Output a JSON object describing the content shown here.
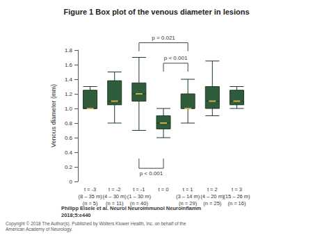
{
  "chart_data": {
    "type": "boxplot",
    "title": "Figure 1 Box plot of the venous diameter in lesions",
    "y_label": "Venous diameter (mm)",
    "categories": [
      "t = -3\n(8 – 35 m)\n(n = 5)",
      "t = -2\n(4 – 30 m)\n(n = 11)",
      "t = -1\n(1 – 30 m)\n(n = 40)",
      "t = 0",
      "t = 1\n(3 – 14 m)\n(n = 29)",
      "t = 2\n(4 – 20 m)\n(n = 25)",
      "t = 3\n(15 – 26 m)\n(n = 16)"
    ],
    "values": [
      [
        1.0,
        1.0,
        1.0,
        1.25,
        1.3
      ],
      [
        0.8,
        1.05,
        1.1,
        1.38,
        1.5
      ],
      [
        0.7,
        1.1,
        1.2,
        1.35,
        1.7
      ],
      [
        0.6,
        0.72,
        0.8,
        0.9,
        1.0
      ],
      [
        0.8,
        1.0,
        1.0,
        1.2,
        1.4
      ],
      [
        0.9,
        1.0,
        1.1,
        1.3,
        1.65
      ],
      [
        1.0,
        1.05,
        1.1,
        1.25,
        1.3
      ]
    ],
    "color": "#2f5d3c",
    "ylim": [
      0,
      1.8
    ],
    "yticks": [
      0,
      0.2,
      0.4,
      0.6,
      0.8,
      {
        "value": 1,
        "label": "1.0"
      },
      1.2,
      1.4,
      1.6,
      1.8
    ],
    "grid": false,
    "annotations": [
      {
        "text": "p = 0.021",
        "between": [
          2,
          4
        ],
        "y": 1.9
      },
      {
        "text": "p < 0.001",
        "between": [
          3,
          4
        ],
        "y": 1.62
      },
      {
        "text": "p < 0.001",
        "between": [
          2,
          3
        ],
        "y": 0.18
      }
    ],
    "source": [
      "Philipp Eisele et al. Neurol Neuroimmunol Neuroinflamm",
      "2018;5:e440"
    ],
    "copyright": [
      "Copyright © 2018 The Author(s). Published by Wolters Kluwer Health, Inc. on behalf of the",
      "American Academy of Neurology."
    ]
  }
}
